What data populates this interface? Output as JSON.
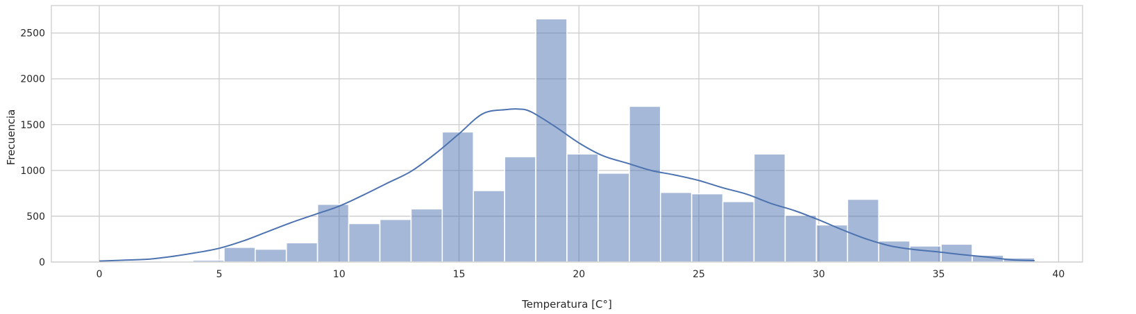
{
  "chart_data": {
    "type": "bar",
    "subtype": "histogram-with-kde",
    "title": "",
    "xlabel": "Temperatura [C°]",
    "ylabel": "Frecuencia",
    "xlim": [
      -2,
      41
    ],
    "ylim": [
      0,
      2800
    ],
    "xticks": [
      0,
      5,
      10,
      15,
      20,
      25,
      30,
      35,
      40
    ],
    "yticks": [
      0,
      500,
      1000,
      1500,
      2000,
      2500
    ],
    "grid": true,
    "colors": {
      "bar": "#4c72b0",
      "kde": "#4c72b0",
      "grid": "#cccccc",
      "spine": "#cccccc"
    },
    "bins": {
      "start": 0,
      "width": 1.3,
      "counts": [
        5,
        0,
        10,
        20,
        160,
        140,
        210,
        630,
        420,
        465,
        580,
        1420,
        780,
        1150,
        2655,
        1180,
        970,
        1700,
        760,
        745,
        660,
        1180,
        510,
        405,
        685,
        230,
        175,
        195,
        75,
        45
      ]
    },
    "kde": {
      "x": [
        0,
        1,
        2,
        3,
        4,
        5,
        6,
        7,
        8,
        9,
        10,
        11,
        12,
        13,
        14,
        15,
        16,
        17,
        17.5,
        18,
        19,
        20,
        21,
        22,
        23,
        24,
        25,
        26,
        27,
        28,
        29,
        30,
        31,
        32,
        33,
        34,
        35,
        36,
        37,
        38,
        39
      ],
      "y": [
        10,
        20,
        30,
        60,
        100,
        150,
        230,
        330,
        430,
        520,
        610,
        730,
        860,
        990,
        1180,
        1400,
        1620,
        1665,
        1670,
        1640,
        1480,
        1300,
        1160,
        1080,
        1000,
        950,
        890,
        810,
        740,
        640,
        560,
        460,
        350,
        250,
        175,
        135,
        110,
        80,
        55,
        25,
        15
      ]
    }
  }
}
